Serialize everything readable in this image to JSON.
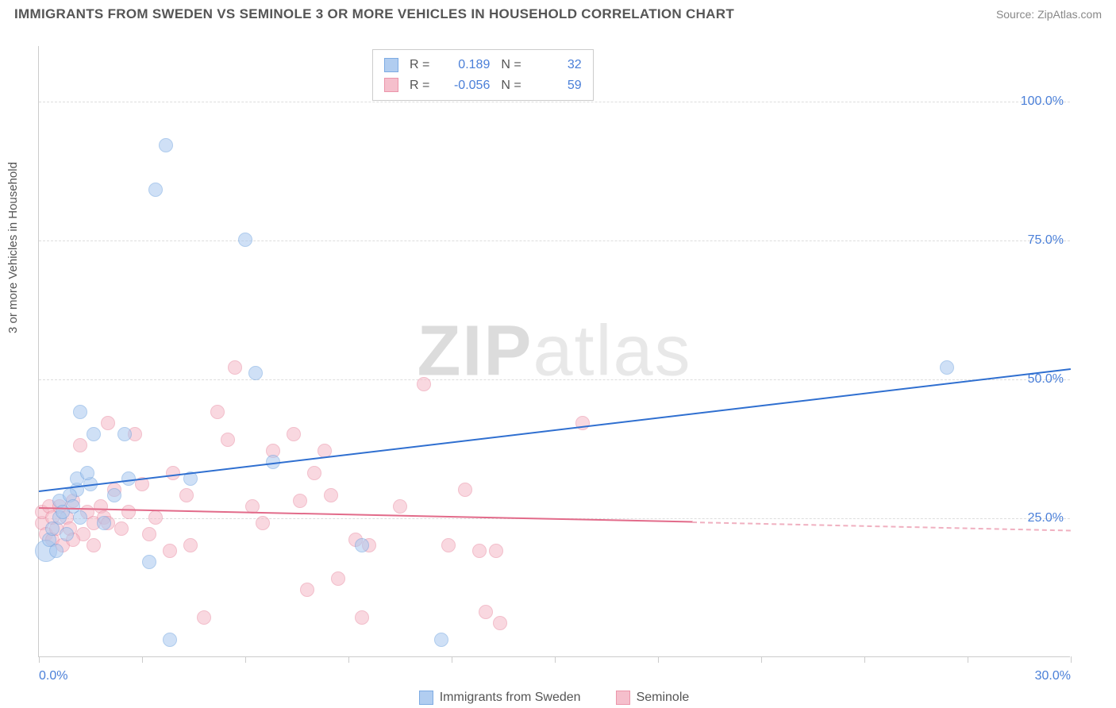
{
  "title": "IMMIGRANTS FROM SWEDEN VS SEMINOLE 3 OR MORE VEHICLES IN HOUSEHOLD CORRELATION CHART",
  "source_label": "Source: ZipAtlas.com",
  "ylabel": "3 or more Vehicles in Household",
  "watermark_a": "ZIP",
  "watermark_b": "atlas",
  "chart": {
    "type": "scatter",
    "xlim": [
      0,
      30
    ],
    "ylim": [
      0,
      110
    ],
    "yticks": [
      25,
      50,
      75,
      100
    ],
    "ytick_labels": [
      "25.0%",
      "50.0%",
      "75.0%",
      "100.0%"
    ],
    "xtick_positions": [
      0,
      15,
      30
    ],
    "xtick_labels": [
      "0.0%",
      "",
      "30.0%"
    ],
    "xtick_minor": [
      3,
      6,
      9,
      12,
      18,
      21,
      24,
      27
    ],
    "background_color": "#ffffff",
    "grid_color": "#dddddd",
    "axis_color": "#cccccc"
  },
  "series": {
    "sweden": {
      "label": "Immigrants from Sweden",
      "fill": "#a9c8ef",
      "stroke": "#6fa3e0",
      "fill_opacity": 0.55,
      "r_base": 9,
      "corr_R": "0.189",
      "corr_N": "32",
      "trend": {
        "x1": 0,
        "y1": 30,
        "x2": 30,
        "y2": 52,
        "color": "#2f6fd0"
      },
      "points": [
        {
          "x": 0.2,
          "y": 19,
          "r": 14
        },
        {
          "x": 0.3,
          "y": 21,
          "r": 9
        },
        {
          "x": 0.6,
          "y": 25,
          "r": 9
        },
        {
          "x": 0.6,
          "y": 28,
          "r": 9
        },
        {
          "x": 0.8,
          "y": 22,
          "r": 9
        },
        {
          "x": 1.1,
          "y": 30,
          "r": 9
        },
        {
          "x": 1.1,
          "y": 32,
          "r": 9
        },
        {
          "x": 1.2,
          "y": 25,
          "r": 9
        },
        {
          "x": 1.2,
          "y": 44,
          "r": 9
        },
        {
          "x": 1.5,
          "y": 31,
          "r": 9
        },
        {
          "x": 1.6,
          "y": 40,
          "r": 9
        },
        {
          "x": 1.9,
          "y": 24,
          "r": 9
        },
        {
          "x": 2.5,
          "y": 40,
          "r": 9
        },
        {
          "x": 2.6,
          "y": 32,
          "r": 9
        },
        {
          "x": 3.2,
          "y": 17,
          "r": 9
        },
        {
          "x": 3.4,
          "y": 84,
          "r": 9
        },
        {
          "x": 3.7,
          "y": 92,
          "r": 9
        },
        {
          "x": 3.8,
          "y": 3,
          "r": 9
        },
        {
          "x": 4.4,
          "y": 32,
          "r": 9
        },
        {
          "x": 6.0,
          "y": 75,
          "r": 9
        },
        {
          "x": 6.3,
          "y": 51,
          "r": 9
        },
        {
          "x": 6.8,
          "y": 35,
          "r": 9
        },
        {
          "x": 9.4,
          "y": 20,
          "r": 9
        },
        {
          "x": 11.7,
          "y": 3,
          "r": 9
        },
        {
          "x": 26.4,
          "y": 52,
          "r": 9
        },
        {
          "x": 0.4,
          "y": 23,
          "r": 9
        },
        {
          "x": 0.9,
          "y": 29,
          "r": 9
        },
        {
          "x": 1.0,
          "y": 27,
          "r": 9
        },
        {
          "x": 1.4,
          "y": 33,
          "r": 9
        },
        {
          "x": 2.2,
          "y": 29,
          "r": 9
        },
        {
          "x": 0.5,
          "y": 19,
          "r": 9
        },
        {
          "x": 0.7,
          "y": 26,
          "r": 9
        }
      ]
    },
    "seminole": {
      "label": "Seminole",
      "fill": "#f5b9c7",
      "stroke": "#e98aa1",
      "fill_opacity": 0.55,
      "r_base": 9,
      "corr_R": "-0.056",
      "corr_N": "59",
      "trend_solid": {
        "x1": 0,
        "y1": 27,
        "x2": 19,
        "y2": 24.5,
        "color": "#e26b8a"
      },
      "trend_dash": {
        "x1": 19,
        "y1": 24.5,
        "x2": 30,
        "y2": 23,
        "color": "#f0b0c0"
      },
      "points": [
        {
          "x": 0.1,
          "y": 24
        },
        {
          "x": 0.1,
          "y": 26
        },
        {
          "x": 0.2,
          "y": 22
        },
        {
          "x": 0.3,
          "y": 27
        },
        {
          "x": 0.4,
          "y": 25
        },
        {
          "x": 0.4,
          "y": 21
        },
        {
          "x": 0.5,
          "y": 23
        },
        {
          "x": 0.6,
          "y": 27
        },
        {
          "x": 0.7,
          "y": 20
        },
        {
          "x": 0.8,
          "y": 25
        },
        {
          "x": 0.9,
          "y": 23
        },
        {
          "x": 1.0,
          "y": 28
        },
        {
          "x": 1.2,
          "y": 38
        },
        {
          "x": 1.3,
          "y": 22
        },
        {
          "x": 1.4,
          "y": 26
        },
        {
          "x": 1.6,
          "y": 24
        },
        {
          "x": 1.6,
          "y": 20
        },
        {
          "x": 1.8,
          "y": 27
        },
        {
          "x": 1.9,
          "y": 25
        },
        {
          "x": 2.0,
          "y": 42
        },
        {
          "x": 2.2,
          "y": 30
        },
        {
          "x": 2.4,
          "y": 23
        },
        {
          "x": 2.6,
          "y": 26
        },
        {
          "x": 2.8,
          "y": 40
        },
        {
          "x": 3.2,
          "y": 22
        },
        {
          "x": 3.4,
          "y": 25
        },
        {
          "x": 3.8,
          "y": 19
        },
        {
          "x": 3.9,
          "y": 33
        },
        {
          "x": 4.3,
          "y": 29
        },
        {
          "x": 4.4,
          "y": 20
        },
        {
          "x": 4.8,
          "y": 7
        },
        {
          "x": 5.2,
          "y": 44
        },
        {
          "x": 5.5,
          "y": 39
        },
        {
          "x": 5.7,
          "y": 52
        },
        {
          "x": 6.2,
          "y": 27
        },
        {
          "x": 6.5,
          "y": 24
        },
        {
          "x": 6.8,
          "y": 37
        },
        {
          "x": 7.4,
          "y": 40
        },
        {
          "x": 7.6,
          "y": 28
        },
        {
          "x": 7.8,
          "y": 12
        },
        {
          "x": 8.0,
          "y": 33
        },
        {
          "x": 8.3,
          "y": 37
        },
        {
          "x": 8.5,
          "y": 29
        },
        {
          "x": 8.7,
          "y": 14
        },
        {
          "x": 9.2,
          "y": 21
        },
        {
          "x": 9.4,
          "y": 7
        },
        {
          "x": 9.6,
          "y": 20
        },
        {
          "x": 10.5,
          "y": 27
        },
        {
          "x": 11.2,
          "y": 49
        },
        {
          "x": 11.9,
          "y": 20
        },
        {
          "x": 12.4,
          "y": 30
        },
        {
          "x": 12.8,
          "y": 19
        },
        {
          "x": 13.0,
          "y": 8
        },
        {
          "x": 13.3,
          "y": 19
        },
        {
          "x": 13.4,
          "y": 6
        },
        {
          "x": 15.8,
          "y": 42
        },
        {
          "x": 1.0,
          "y": 21
        },
        {
          "x": 2.0,
          "y": 24
        },
        {
          "x": 3.0,
          "y": 31
        }
      ]
    }
  },
  "legend": {
    "r_label": "R =",
    "n_label": "N ="
  }
}
